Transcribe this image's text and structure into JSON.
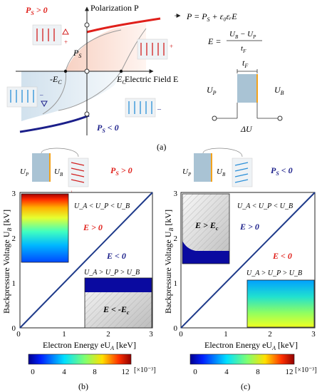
{
  "panel_a": {
    "label": "(a)",
    "ps_pos": "P",
    "ps_pos_sub": "S",
    "ps_pos_cmp": " > 0",
    "ps_neg": "P",
    "ps_neg_sub": "S",
    "ps_neg_cmp": " < 0",
    "polarization": "Polarization P",
    "efield": "Electric Field E",
    "ps_center": "P",
    "ps_center_sub": "S",
    "neg_ec": "-E",
    "neg_ec_sub": "C",
    "ec": "E",
    "ec_sub": "C",
    "eq1": "P = P",
    "eq1_sub": "S",
    "eq1_rest": " + ε₀εᵣE",
    "eq2_lhs": "E =",
    "eq2_num": "U",
    "eq2_num_sub": "B",
    "eq2_num_mid": " − U",
    "eq2_num_sub2": "P",
    "eq2_den": "t",
    "eq2_den_sub": "F",
    "circuit_tf": "t",
    "circuit_tf_sub": "F",
    "circuit_up": "U",
    "circuit_up_sub": "P",
    "circuit_ub": "U",
    "circuit_ub_sub": "B",
    "circuit_du": "ΔU"
  },
  "panel_b": {
    "label": "(b)",
    "up": "U",
    "up_sub": "P",
    "ub": "U",
    "ub_sub": "B",
    "ps": "P",
    "ps_sub": "S",
    "ps_cmp": " > 0",
    "ylabel": "Backpressure Voltage U",
    "ylabel_sub": "B",
    "ylabel_unit": " [kV]",
    "xlabel": "Electron Energy eU",
    "xlabel_sub": "A",
    "xlabel_unit": " [keV]",
    "ticks": [
      "0",
      "1",
      "2",
      "3"
    ],
    "ineq_top": "U_A < U_P < U_B",
    "ineq_bottom": "U_A > U_P > U_B",
    "e_pos": "E > 0",
    "e_neg": "E < 0",
    "inset_label": "E < -E",
    "inset_label_sub": "c",
    "colorbar_ticks": [
      "0",
      "4",
      "8",
      "12"
    ],
    "colorbar_unit": "[×10⁻³]"
  },
  "panel_c": {
    "label": "(c)",
    "up": "U",
    "up_sub": "P",
    "ub": "U",
    "ub_sub": "B",
    "ps": "P",
    "ps_sub": "S",
    "ps_cmp": " < 0",
    "ylabel": "Backpressure Voltage U",
    "ylabel_sub": "B",
    "ylabel_unit": " [kV]",
    "xlabel": "Electron Energy eU",
    "xlabel_sub": "A",
    "xlabel_unit": " [keV]",
    "ticks": [
      "0",
      "1",
      "2",
      "3"
    ],
    "ineq_top": "U_A < U_P < U_B",
    "ineq_bottom": "U_A > U_P > U_B",
    "e_pos": "E > 0",
    "e_neg": "E < 0",
    "inset_label": "E > E",
    "inset_label_sub": "c",
    "colorbar_ticks": [
      "0",
      "4",
      "8",
      "12"
    ],
    "colorbar_unit": "[×10⁻³]"
  },
  "colors": {
    "red": "#e0201b",
    "navy": "#1b1f8a",
    "diag": "#1e3a8a",
    "fe": "#a9c3d4",
    "electrode": "#f3a21b"
  }
}
